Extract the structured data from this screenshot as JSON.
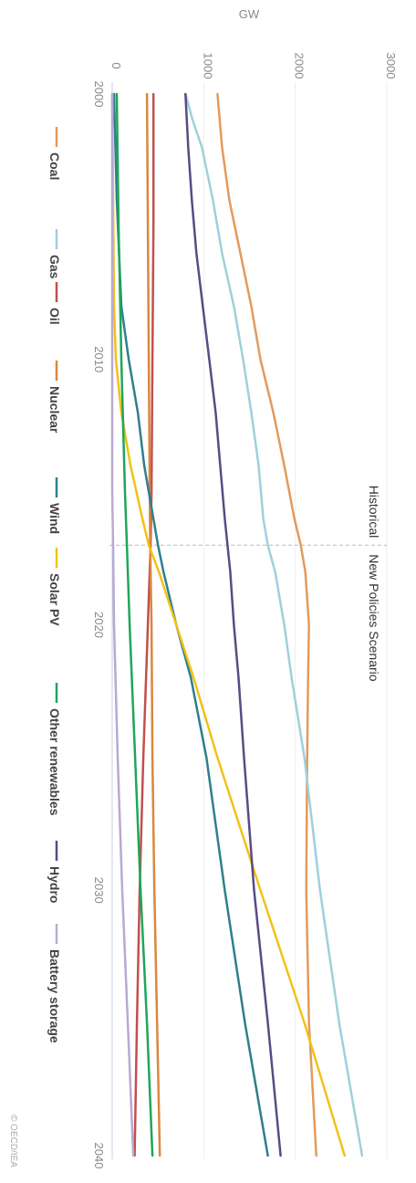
{
  "chart_data": {
    "type": "line",
    "ylabel": "GW",
    "xlim": [
      2000,
      2040
    ],
    "ylim": [
      0,
      3000
    ],
    "y_ticks": [
      "0",
      "1000",
      "2000",
      "3000"
    ],
    "x_ticks": [
      "2000",
      "2010",
      "2020",
      "2030",
      "2040"
    ],
    "annotations": {
      "left": "Historical",
      "right": "New Policies Scenario",
      "divider_year": 2017
    },
    "credit": "© OECD/IEA",
    "grid": true,
    "legend_position": "left",
    "series": [
      {
        "name": "Coal",
        "color": "#e39a5c",
        "points": [
          [
            2000,
            1150
          ],
          [
            2002,
            1200
          ],
          [
            2004,
            1280
          ],
          [
            2006,
            1400
          ],
          [
            2008,
            1520
          ],
          [
            2010,
            1620
          ],
          [
            2012,
            1760
          ],
          [
            2014,
            1880
          ],
          [
            2016,
            1990
          ],
          [
            2017,
            2060
          ],
          [
            2018,
            2110
          ],
          [
            2020,
            2150
          ],
          [
            2022,
            2140
          ],
          [
            2025,
            2130
          ],
          [
            2030,
            2120
          ],
          [
            2035,
            2150
          ],
          [
            2040,
            2230
          ]
        ]
      },
      {
        "name": "Gas",
        "color": "#9fd0dc",
        "points": [
          [
            2000,
            800
          ],
          [
            2001,
            880
          ],
          [
            2002,
            980
          ],
          [
            2004,
            1100
          ],
          [
            2006,
            1200
          ],
          [
            2008,
            1330
          ],
          [
            2010,
            1430
          ],
          [
            2012,
            1520
          ],
          [
            2014,
            1600
          ],
          [
            2016,
            1650
          ],
          [
            2017,
            1700
          ],
          [
            2018,
            1780
          ],
          [
            2020,
            1880
          ],
          [
            2022,
            1960
          ],
          [
            2025,
            2100
          ],
          [
            2030,
            2270
          ],
          [
            2035,
            2480
          ],
          [
            2040,
            2730
          ]
        ]
      },
      {
        "name": "Oil",
        "color": "#c0504d",
        "points": [
          [
            2000,
            450
          ],
          [
            2005,
            450
          ],
          [
            2010,
            440
          ],
          [
            2015,
            430
          ],
          [
            2017,
            420
          ],
          [
            2020,
            390
          ],
          [
            2025,
            340
          ],
          [
            2030,
            300
          ],
          [
            2035,
            270
          ],
          [
            2040,
            245
          ]
        ]
      },
      {
        "name": "Nuclear",
        "color": "#d9873f",
        "points": [
          [
            2000,
            380
          ],
          [
            2005,
            390
          ],
          [
            2010,
            400
          ],
          [
            2015,
            410
          ],
          [
            2017,
            415
          ],
          [
            2020,
            430
          ],
          [
            2025,
            440
          ],
          [
            2030,
            460
          ],
          [
            2035,
            490
          ],
          [
            2040,
            520
          ]
        ]
      },
      {
        "name": "Wind",
        "color": "#2e7f8c",
        "points": [
          [
            2000,
            20
          ],
          [
            2004,
            50
          ],
          [
            2008,
            100
          ],
          [
            2010,
            180
          ],
          [
            2012,
            280
          ],
          [
            2014,
            350
          ],
          [
            2016,
            450
          ],
          [
            2017,
            500
          ],
          [
            2018,
            560
          ],
          [
            2020,
            700
          ],
          [
            2022,
            860
          ],
          [
            2025,
            1030
          ],
          [
            2030,
            1230
          ],
          [
            2035,
            1450
          ],
          [
            2040,
            1700
          ]
        ]
      },
      {
        "name": "Solar PV",
        "color": "#f2c118",
        "points": [
          [
            2000,
            0
          ],
          [
            2008,
            20
          ],
          [
            2010,
            40
          ],
          [
            2012,
            100
          ],
          [
            2014,
            200
          ],
          [
            2016,
            330
          ],
          [
            2017,
            400
          ],
          [
            2018,
            510
          ],
          [
            2020,
            700
          ],
          [
            2022,
            890
          ],
          [
            2025,
            1150
          ],
          [
            2030,
            1620
          ],
          [
            2035,
            2100
          ],
          [
            2040,
            2540
          ]
        ]
      },
      {
        "name": "Other renewables",
        "color": "#1fa65a",
        "points": [
          [
            2000,
            50
          ],
          [
            2005,
            70
          ],
          [
            2010,
            100
          ],
          [
            2015,
            140
          ],
          [
            2017,
            160
          ],
          [
            2020,
            190
          ],
          [
            2025,
            250
          ],
          [
            2030,
            310
          ],
          [
            2035,
            380
          ],
          [
            2040,
            440
          ]
        ]
      },
      {
        "name": "Hydro",
        "color": "#5b4a83",
        "points": [
          [
            2000,
            800
          ],
          [
            2002,
            830
          ],
          [
            2004,
            870
          ],
          [
            2006,
            920
          ],
          [
            2008,
            990
          ],
          [
            2010,
            1060
          ],
          [
            2012,
            1130
          ],
          [
            2014,
            1180
          ],
          [
            2016,
            1230
          ],
          [
            2017,
            1260
          ],
          [
            2018,
            1290
          ],
          [
            2020,
            1330
          ],
          [
            2022,
            1380
          ],
          [
            2025,
            1440
          ],
          [
            2030,
            1550
          ],
          [
            2035,
            1700
          ],
          [
            2040,
            1840
          ]
        ]
      },
      {
        "name": "Battery storage",
        "color": "#b9a9d3",
        "points": [
          [
            2000,
            0
          ],
          [
            2015,
            0
          ],
          [
            2017,
            10
          ],
          [
            2020,
            20
          ],
          [
            2025,
            60
          ],
          [
            2030,
            110
          ],
          [
            2035,
            170
          ],
          [
            2040,
            230
          ]
        ]
      }
    ]
  }
}
